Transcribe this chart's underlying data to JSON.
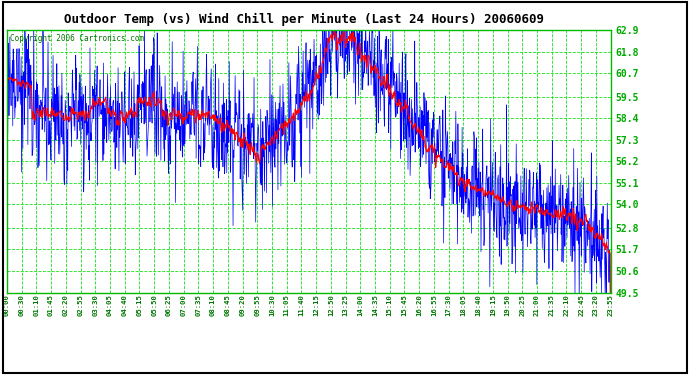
{
  "title": "Outdoor Temp (vs) Wind Chill per Minute (Last 24 Hours) 20060609",
  "copyright": "Copyright 2006 Cartronics.com",
  "yticks": [
    49.5,
    50.6,
    51.7,
    52.8,
    54.0,
    55.1,
    56.2,
    57.3,
    58.4,
    59.5,
    60.7,
    61.8,
    62.9
  ],
  "ymin": 49.5,
  "ymax": 62.9,
  "plot_bg": "#FFFFFF",
  "temp_color": "#FF0000",
  "windchill_color": "#0000FF",
  "grid_color": "#00FF00",
  "xtick_labels": [
    "00:00",
    "00:30",
    "01:10",
    "01:45",
    "02:20",
    "02:55",
    "03:30",
    "04:05",
    "04:40",
    "05:15",
    "05:50",
    "06:25",
    "07:00",
    "07:35",
    "08:10",
    "08:45",
    "09:20",
    "09:55",
    "10:30",
    "11:05",
    "11:40",
    "12:15",
    "12:50",
    "13:25",
    "14:00",
    "14:35",
    "15:10",
    "15:45",
    "16:20",
    "16:55",
    "17:30",
    "18:05",
    "18:40",
    "19:15",
    "19:50",
    "20:25",
    "21:00",
    "21:35",
    "22:10",
    "22:45",
    "23:20",
    "23:55"
  ]
}
